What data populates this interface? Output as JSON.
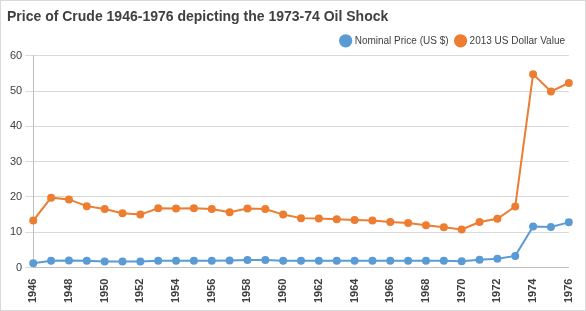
{
  "chart_data": {
    "type": "line",
    "title": "Price of Crude 1946-1976 depicting the 1973-74 Oil Shock",
    "categories": [
      "1946",
      null,
      "1948",
      null,
      "1950",
      null,
      "1952",
      null,
      "1954",
      null,
      "1956",
      null,
      "1958",
      null,
      "1960",
      null,
      "1962",
      null,
      "1964",
      null,
      "1966",
      null,
      "1968",
      null,
      "1970",
      null,
      "1972",
      null,
      "1974",
      null,
      "1976"
    ],
    "series": [
      {
        "name": "Nominal Price (US $)",
        "color": "#5b9bd5",
        "marker": "circle",
        "line_style": "solid",
        "values": [
          1.2,
          1.9,
          2.0,
          1.9,
          1.7,
          1.7,
          1.7,
          1.9,
          1.9,
          1.9,
          1.9,
          2.0,
          2.1,
          2.1,
          1.9,
          1.9,
          1.9,
          1.9,
          1.9,
          1.9,
          1.9,
          1.9,
          1.9,
          1.9,
          1.8,
          2.2,
          2.5,
          3.3,
          11.6,
          11.5,
          12.8
        ]
      },
      {
        "name": "2013 US Dollar Value",
        "color": "#ed7d31",
        "marker": "circle",
        "line_style": "solid",
        "values": [
          13.3,
          19.8,
          19.3,
          17.4,
          16.6,
          15.4,
          15.0,
          16.8,
          16.7,
          16.8,
          16.6,
          15.7,
          16.7,
          16.6,
          15.0,
          14.0,
          13.9,
          13.7,
          13.5,
          13.3,
          12.9,
          12.6,
          12.0,
          11.4,
          10.8,
          12.9,
          13.8,
          17.3,
          54.8,
          49.9,
          52.3
        ]
      }
    ],
    "ylim": [
      0,
      60
    ],
    "yticks": [
      0,
      10,
      20,
      30,
      40,
      50,
      60
    ],
    "grid": true,
    "legend": "upper right"
  }
}
